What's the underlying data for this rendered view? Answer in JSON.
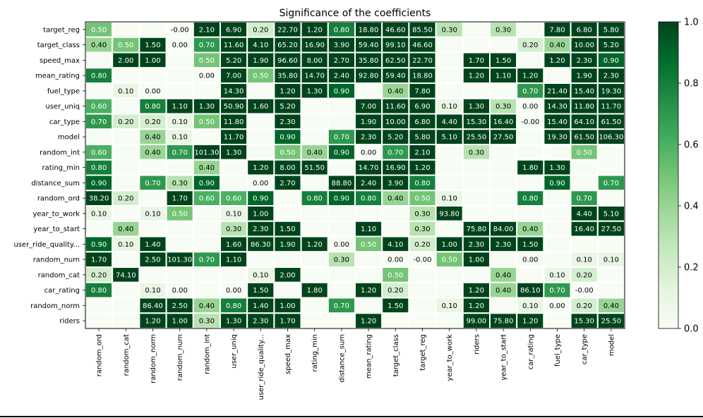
{
  "chart_data": {
    "type": "heatmap",
    "title": "Significance of the coefficients",
    "rows": [
      "target_reg",
      "target_class",
      "speed_max",
      "mean_rating",
      "fuel_type",
      "user_uniq",
      "car_type",
      "model",
      "random_int",
      "rating_min",
      "distance_sum",
      "random_ord",
      "year_to_work",
      "year_to_start",
      "user_ride_quality...",
      "random_num",
      "random_cat",
      "car_rating",
      "random_norm",
      "riders"
    ],
    "columns": [
      "random_ord",
      "random_cat",
      "random_norm",
      "random_num",
      "random_int",
      "user_uniq",
      "user_ride_quality...",
      "speed_max",
      "rating_min",
      "distance_sum",
      "mean_rating",
      "target_class",
      "target_reg",
      "year_to_work",
      "riders",
      "year_to_start",
      "car_rating",
      "fuel_type",
      "car_type",
      "model"
    ],
    "values": [
      [
        "0.50",
        "",
        "",
        "-0.00",
        "2.10",
        "6.90",
        "0.20",
        "22.70",
        "1.20",
        "0.80",
        "18.80",
        "46.60",
        "85.50",
        "0.30",
        "",
        "0.30",
        "",
        "7.80",
        "6.80",
        "5.80"
      ],
      [
        "0.40",
        "0.50",
        "1.50",
        "0.00",
        "0.70",
        "11.60",
        "4.10",
        "65.20",
        "16.90",
        "3.90",
        "59.40",
        "99.10",
        "46.60",
        "",
        "",
        "",
        "0.20",
        "0.40",
        "10.00",
        "5.20"
      ],
      [
        "",
        "2.00",
        "1.00",
        "",
        "0.50",
        "5.20",
        "1.90",
        "96.60",
        "8.00",
        "2.70",
        "35.80",
        "62.50",
        "22.70",
        "",
        "1.70",
        "1.50",
        "",
        "1.20",
        "2.30",
        "0.90"
      ],
      [
        "0.80",
        "",
        "",
        "",
        "0.00",
        "7.00",
        "0.50",
        "35.80",
        "14.70",
        "2.40",
        "92.80",
        "59.40",
        "18.80",
        "",
        "1.20",
        "1.10",
        "1.20",
        "",
        "1.90",
        "2.30"
      ],
      [
        "",
        "0.10",
        "0.00",
        "",
        "",
        "14.30",
        "",
        "1.20",
        "1.30",
        "0.90",
        "",
        "0.40",
        "7.80",
        "",
        "",
        "",
        "0.70",
        "21.40",
        "15.40",
        "19.30"
      ],
      [
        "0.60",
        "",
        "0.80",
        "1.10",
        "1.30",
        "50.90",
        "1.60",
        "5.20",
        "",
        "",
        "7.00",
        "11.60",
        "6.90",
        "0.10",
        "1.30",
        "0.30",
        "0.00",
        "14.30",
        "11.80",
        "11.70"
      ],
      [
        "0.70",
        "0.20",
        "0.20",
        "0.10",
        "0.50",
        "11.80",
        "",
        "2.30",
        "",
        "",
        "1.90",
        "10.00",
        "6.80",
        "4.40",
        "15.30",
        "16.40",
        "-0.00",
        "15.40",
        "64.10",
        "61.50"
      ],
      [
        "",
        "",
        "0.40",
        "0.10",
        "",
        "11.70",
        "",
        "0.90",
        "",
        "0.70",
        "2.30",
        "5.20",
        "5.80",
        "5.10",
        "25.50",
        "27.50",
        "",
        "19.30",
        "61.50",
        "106.30"
      ],
      [
        "0.60",
        "",
        "0.40",
        "0.70",
        "101.30",
        "1.30",
        "",
        "0.50",
        "0.40",
        "0.90",
        "0.00",
        "0.70",
        "2.10",
        "",
        "0.30",
        "",
        "",
        "",
        "0.50",
        ""
      ],
      [
        "0.80",
        "",
        "",
        "",
        "0.40",
        "",
        "1.20",
        "8.00",
        "51.50",
        "",
        "14.70",
        "16.90",
        "1.20",
        "",
        "",
        "",
        "1.80",
        "1.30",
        "",
        ""
      ],
      [
        "0.90",
        "",
        "0.70",
        "0.30",
        "0.90",
        "",
        "0.00",
        "2.70",
        "",
        "88.80",
        "2.40",
        "3.90",
        "0.80",
        "",
        "",
        "",
        "",
        "0.90",
        "",
        "0.70"
      ],
      [
        "38.20",
        "0.20",
        "",
        "1.70",
        "0.60",
        "0.60",
        "0.90",
        "",
        "0.80",
        "0.90",
        "0.80",
        "0.40",
        "0.50",
        "0.10",
        "",
        "",
        "0.80",
        "",
        "0.70",
        ""
      ],
      [
        "0.10",
        "",
        "0.10",
        "0.50",
        "",
        "0.10",
        "1.00",
        "",
        "",
        "",
        "",
        "",
        "0.30",
        "93.80",
        "",
        "",
        "",
        "",
        "4.40",
        "5.10"
      ],
      [
        "",
        "0.40",
        "",
        "",
        "",
        "0.30",
        "2.30",
        "1.50",
        "",
        "",
        "1.10",
        "",
        "0.30",
        "",
        "75.80",
        "84.00",
        "0.40",
        "",
        "16.40",
        "27.50"
      ],
      [
        "0.90",
        "0.10",
        "1.40",
        "",
        "",
        "1.60",
        "86.30",
        "1.90",
        "1.20",
        "0.00",
        "0.50",
        "4.10",
        "0.20",
        "1.00",
        "2.30",
        "2.30",
        "1.50",
        "",
        "",
        ""
      ],
      [
        "1.70",
        "",
        "2.50",
        "101.30",
        "0.70",
        "1.10",
        "",
        "",
        "",
        "0.30",
        "",
        "0.00",
        "-0.00",
        "0.50",
        "1.00",
        "",
        "0.00",
        "",
        "0.10",
        "0.10"
      ],
      [
        "0.20",
        "74.10",
        "",
        "",
        "",
        "",
        "0.10",
        "2.00",
        "",
        "",
        "",
        "0.50",
        "",
        "",
        "",
        "0.40",
        "",
        "0.10",
        "0.20",
        ""
      ],
      [
        "0.80",
        "",
        "0.10",
        "0.00",
        "",
        "0.00",
        "1.50",
        "",
        "1.80",
        "",
        "1.20",
        "0.20",
        "",
        "",
        "1.20",
        "0.40",
        "86.10",
        "0.70",
        "-0.00",
        ""
      ],
      [
        "",
        "",
        "86.40",
        "2.50",
        "0.40",
        "0.80",
        "1.40",
        "1.00",
        "",
        "0.70",
        "",
        "1.50",
        "",
        "0.10",
        "1.20",
        "",
        "0.10",
        "0.00",
        "0.20",
        "0.40"
      ],
      [
        "",
        "",
        "1.20",
        "1.00",
        "0.30",
        "1.30",
        "2.30",
        "1.70",
        "",
        "",
        "1.20",
        "",
        "",
        "",
        "99.00",
        "75.80",
        "1.20",
        "",
        "15.30",
        "25.50"
      ]
    ],
    "colorbar": {
      "min": 0.0,
      "max": 1.0,
      "ticks": [
        "0.0",
        "0.2",
        "0.4",
        "0.6",
        "0.8",
        "1.0"
      ]
    },
    "colormap": [
      "#f7fcf5",
      "#e5f5e0",
      "#c7e9c0",
      "#a1d99b",
      "#74c476",
      "#41ab5d",
      "#238b45",
      "#006d2c",
      "#00441b"
    ]
  }
}
